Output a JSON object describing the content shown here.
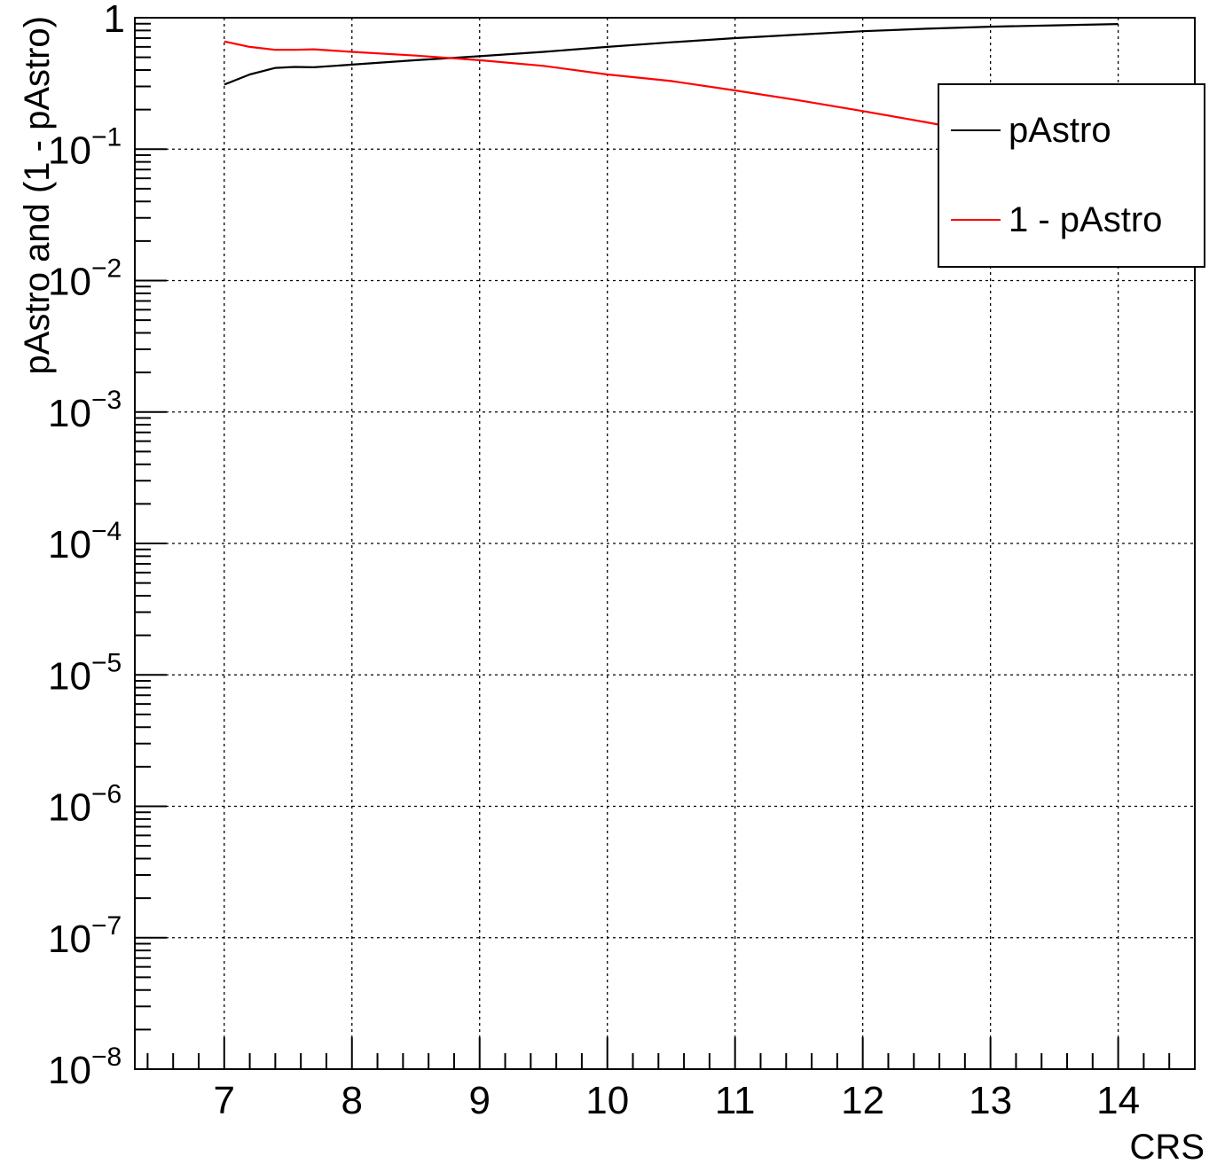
{
  "chart_data": {
    "type": "line",
    "title": "",
    "xlabel": "CRS",
    "ylabel": "pAstro and (1 - pAstro)",
    "xlim": [
      6.3,
      14.6
    ],
    "ylim": [
      1e-08,
      1.0
    ],
    "y_scale": "log",
    "grid": true,
    "legend_position": "top-right",
    "x_ticks": [
      "7",
      "8",
      "9",
      "10",
      "11",
      "12",
      "13",
      "14"
    ],
    "y_ticks": [
      {
        "base": "10",
        "exp": "−8",
        "value": 1e-08
      },
      {
        "base": "10",
        "exp": "−7",
        "value": 1e-07
      },
      {
        "base": "10",
        "exp": "−6",
        "value": 1e-06
      },
      {
        "base": "10",
        "exp": "−5",
        "value": 1e-05
      },
      {
        "base": "10",
        "exp": "−4",
        "value": 0.0001
      },
      {
        "base": "10",
        "exp": "−3",
        "value": 0.001
      },
      {
        "base": "10",
        "exp": "−2",
        "value": 0.01
      },
      {
        "base": "10",
        "exp": "−1",
        "value": 0.1
      },
      {
        "base": "1",
        "exp": "",
        "value": 1
      }
    ],
    "series": [
      {
        "name": "pAstro",
        "color": "#000000",
        "x": [
          7.0,
          7.2,
          7.4,
          7.55,
          7.7,
          8.0,
          8.5,
          9.0,
          9.5,
          10.0,
          10.5,
          11.0,
          11.5,
          12.0,
          12.5,
          13.0,
          13.5,
          14.0
        ],
        "y": [
          0.31,
          0.37,
          0.415,
          0.422,
          0.42,
          0.44,
          0.475,
          0.51,
          0.55,
          0.6,
          0.65,
          0.7,
          0.745,
          0.79,
          0.825,
          0.855,
          0.875,
          0.895
        ]
      },
      {
        "name": "1 - pAstro",
        "color": "#ff0000",
        "x": [
          7.0,
          7.2,
          7.4,
          7.55,
          7.7,
          8.0,
          8.5,
          9.0,
          9.5,
          10.0,
          10.5,
          11.0,
          11.5,
          12.0,
          12.5,
          13.0
        ],
        "y": [
          0.66,
          0.6,
          0.57,
          0.57,
          0.575,
          0.55,
          0.515,
          0.475,
          0.43,
          0.37,
          0.33,
          0.28,
          0.235,
          0.195,
          0.16,
          0.13
        ]
      }
    ]
  }
}
